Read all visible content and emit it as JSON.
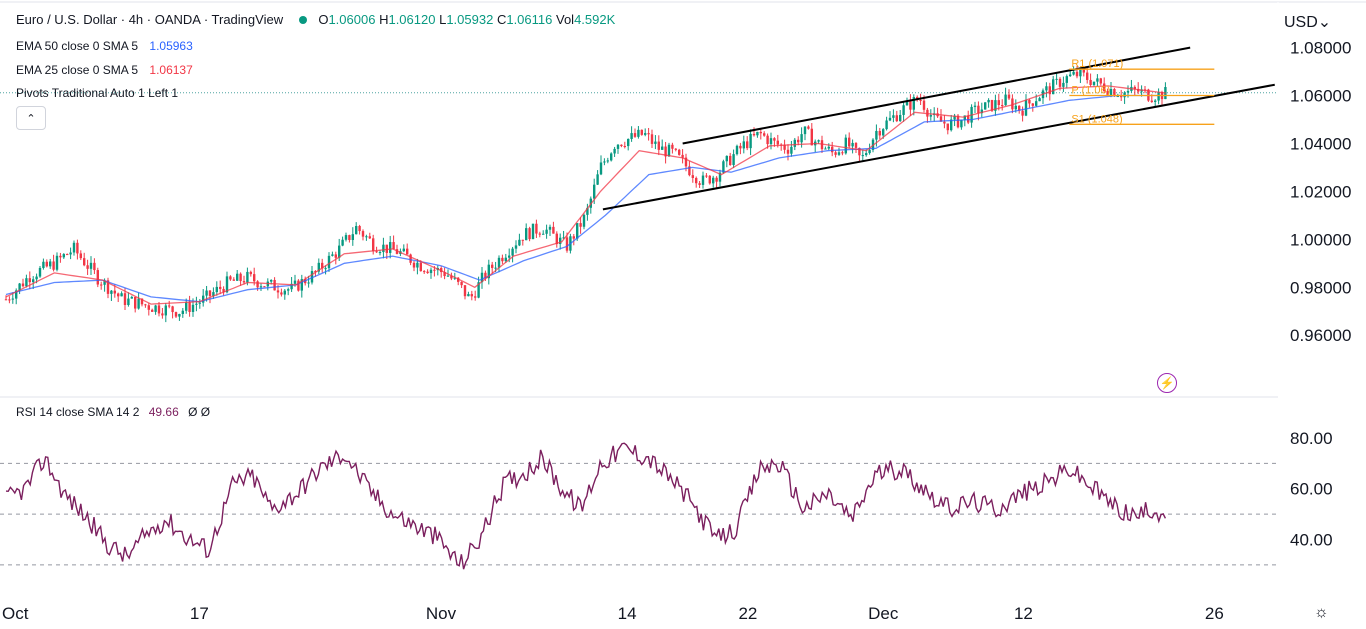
{
  "header": {
    "symbol": "Euro / U.S. Dollar · 4h · OANDA · TradingView",
    "ohlc": {
      "o_label": "O",
      "o": "1.06006",
      "h_label": "H",
      "h": "1.06120",
      "l_label": "L",
      "l": "1.05932",
      "c_label": "C",
      "c": "1.06116",
      "vol_label": "Vol",
      "vol": "4.592K"
    },
    "ema50": {
      "label": "EMA 50 close 0 SMA 5",
      "value": "1.05963",
      "color": "#2962ff"
    },
    "ema25": {
      "label": "EMA 25 close 0 SMA 5",
      "value": "1.06137",
      "color": "#f23645"
    },
    "pivots": {
      "label": "Pivots Traditional Auto 1 Left 1"
    },
    "collapse": "⌃",
    "currency": "USD⌄"
  },
  "rsi_header": {
    "label": "RSI 14 close SMA 14 2",
    "value": "49.66",
    "extra": "Ø Ø"
  },
  "chart_data": [
    {
      "type": "candlestick",
      "title": "Euro / U.S. Dollar · 4h · OANDA",
      "x_tick_labels": [
        "Oct",
        "17",
        "Nov",
        "14",
        "22",
        "Dec",
        "12",
        "26"
      ],
      "y_tick_labels": [
        "1.08000",
        "1.06000",
        "1.04000",
        "1.02000",
        "1.00000",
        "0.98000",
        "0.96000"
      ],
      "ylim": [
        0.948,
        1.0815
      ],
      "grid": false,
      "price_anchors": [
        [
          0,
          0.975
        ],
        [
          10,
          0.985
        ],
        [
          20,
          0.99
        ],
        [
          28,
          0.996
        ],
        [
          38,
          0.984
        ],
        [
          48,
          0.975
        ],
        [
          60,
          0.972
        ],
        [
          72,
          0.97
        ],
        [
          82,
          0.975
        ],
        [
          92,
          0.982
        ],
        [
          100,
          0.984
        ],
        [
          108,
          0.981
        ],
        [
          118,
          0.979
        ],
        [
          128,
          0.986
        ],
        [
          138,
          0.996
        ],
        [
          145,
          1.005
        ],
        [
          152,
          0.998
        ],
        [
          162,
          0.995
        ],
        [
          172,
          0.989
        ],
        [
          182,
          0.986
        ],
        [
          188,
          0.98
        ],
        [
          192,
          0.975
        ],
        [
          198,
          0.985
        ],
        [
          206,
          0.994
        ],
        [
          214,
          1.002
        ],
        [
          222,
          1.005
        ],
        [
          232,
          0.997
        ],
        [
          240,
          1.01
        ],
        [
          246,
          1.03
        ],
        [
          252,
          1.04
        ],
        [
          258,
          1.042
        ],
        [
          264,
          1.044
        ],
        [
          270,
          1.038
        ],
        [
          276,
          1.036
        ],
        [
          282,
          1.03
        ],
        [
          288,
          1.024
        ],
        [
          294,
          1.027
        ],
        [
          300,
          1.034
        ],
        [
          306,
          1.04
        ],
        [
          312,
          1.044
        ],
        [
          318,
          1.04
        ],
        [
          324,
          1.038
        ],
        [
          330,
          1.045
        ],
        [
          336,
          1.04
        ],
        [
          342,
          1.036
        ],
        [
          348,
          1.04
        ],
        [
          354,
          1.033
        ],
        [
          360,
          1.045
        ],
        [
          366,
          1.05
        ],
        [
          372,
          1.055
        ],
        [
          378,
          1.059
        ],
        [
          384,
          1.05
        ],
        [
          390,
          1.048
        ],
        [
          396,
          1.05
        ],
        [
          402,
          1.054
        ],
        [
          408,
          1.056
        ],
        [
          414,
          1.058
        ],
        [
          420,
          1.054
        ],
        [
          426,
          1.059
        ],
        [
          432,
          1.063
        ],
        [
          438,
          1.067
        ],
        [
          444,
          1.069
        ],
        [
          450,
          1.066
        ],
        [
          456,
          1.063
        ],
        [
          462,
          1.061
        ],
        [
          468,
          1.062
        ],
        [
          474,
          1.06
        ],
        [
          480,
          1.061
        ]
      ],
      "ema25": [
        [
          0,
          0.976
        ],
        [
          20,
          0.986
        ],
        [
          40,
          0.983
        ],
        [
          60,
          0.973
        ],
        [
          80,
          0.974
        ],
        [
          100,
          0.982
        ],
        [
          120,
          0.981
        ],
        [
          140,
          0.994
        ],
        [
          160,
          0.996
        ],
        [
          180,
          0.987
        ],
        [
          194,
          0.98
        ],
        [
          210,
          0.993
        ],
        [
          230,
          0.999
        ],
        [
          246,
          1.02
        ],
        [
          262,
          1.037
        ],
        [
          280,
          1.034
        ],
        [
          296,
          1.027
        ],
        [
          316,
          1.039
        ],
        [
          336,
          1.04
        ],
        [
          356,
          1.037
        ],
        [
          376,
          1.053
        ],
        [
          396,
          1.051
        ],
        [
          416,
          1.056
        ],
        [
          436,
          1.063
        ],
        [
          456,
          1.064
        ],
        [
          480,
          1.061
        ]
      ],
      "ema50": [
        [
          0,
          0.977
        ],
        [
          20,
          0.982
        ],
        [
          40,
          0.983
        ],
        [
          60,
          0.976
        ],
        [
          80,
          0.974
        ],
        [
          100,
          0.979
        ],
        [
          120,
          0.981
        ],
        [
          140,
          0.99
        ],
        [
          160,
          0.993
        ],
        [
          180,
          0.989
        ],
        [
          196,
          0.983
        ],
        [
          214,
          0.991
        ],
        [
          232,
          0.997
        ],
        [
          248,
          1.01
        ],
        [
          266,
          1.027
        ],
        [
          284,
          1.03
        ],
        [
          300,
          1.028
        ],
        [
          320,
          1.034
        ],
        [
          340,
          1.037
        ],
        [
          360,
          1.038
        ],
        [
          380,
          1.049
        ],
        [
          400,
          1.05
        ],
        [
          420,
          1.054
        ],
        [
          440,
          1.058
        ],
        [
          460,
          1.06
        ],
        [
          480,
          1.06
        ]
      ],
      "channel": {
        "upper": [
          [
            280,
            1.04
          ],
          [
            490,
            1.08
          ]
        ],
        "lower": [
          [
            247,
            1.0125
          ],
          [
            525,
            1.0645
          ]
        ]
      },
      "pivots": {
        "r1": {
          "label": "R1 (1.071)",
          "value": 1.071,
          "x": [
            440,
            500
          ]
        },
        "p": {
          "label": "P (1.06)",
          "value": 1.06,
          "x": [
            440,
            500
          ]
        },
        "s1": {
          "label": "S1 (1.048)",
          "value": 1.048,
          "x": [
            440,
            500
          ]
        }
      },
      "last_price": 1.06116,
      "colors": {
        "up": "#089981",
        "down": "#f23645",
        "ema25": "#f23645",
        "ema50": "#2962ff",
        "pivot": "#f7a21b",
        "channel": "#000000"
      }
    },
    {
      "type": "line",
      "title": "RSI 14 close SMA 14 2",
      "y_tick_labels": [
        "80.00",
        "60.00",
        "40.00"
      ],
      "ylim": [
        26,
        80
      ],
      "levels": [
        70,
        50,
        30
      ],
      "color": "#7b1f5e",
      "rsi_anchors": [
        [
          0,
          56
        ],
        [
          8,
          60
        ],
        [
          16,
          72
        ],
        [
          24,
          58
        ],
        [
          34,
          48
        ],
        [
          42,
          38
        ],
        [
          50,
          33
        ],
        [
          58,
          42
        ],
        [
          66,
          48
        ],
        [
          76,
          40
        ],
        [
          84,
          36
        ],
        [
          94,
          62
        ],
        [
          102,
          65
        ],
        [
          110,
          52
        ],
        [
          120,
          58
        ],
        [
          130,
          68
        ],
        [
          140,
          74
        ],
        [
          150,
          60
        ],
        [
          160,
          50
        ],
        [
          170,
          45
        ],
        [
          178,
          41
        ],
        [
          188,
          30
        ],
        [
          196,
          40
        ],
        [
          206,
          62
        ],
        [
          214,
          66
        ],
        [
          222,
          72
        ],
        [
          230,
          60
        ],
        [
          238,
          52
        ],
        [
          246,
          70
        ],
        [
          256,
          76
        ],
        [
          266,
          72
        ],
        [
          276,
          63
        ],
        [
          284,
          54
        ],
        [
          294,
          40
        ],
        [
          302,
          44
        ],
        [
          312,
          68
        ],
        [
          320,
          70
        ],
        [
          330,
          52
        ],
        [
          340,
          58
        ],
        [
          350,
          48
        ],
        [
          360,
          66
        ],
        [
          370,
          68
        ],
        [
          380,
          60
        ],
        [
          390,
          52
        ],
        [
          400,
          55
        ],
        [
          410,
          52
        ],
        [
          420,
          58
        ],
        [
          430,
          62
        ],
        [
          440,
          68
        ],
        [
          450,
          60
        ],
        [
          460,
          52
        ],
        [
          468,
          49
        ],
        [
          474,
          52
        ],
        [
          480,
          49.66
        ]
      ]
    }
  ]
}
